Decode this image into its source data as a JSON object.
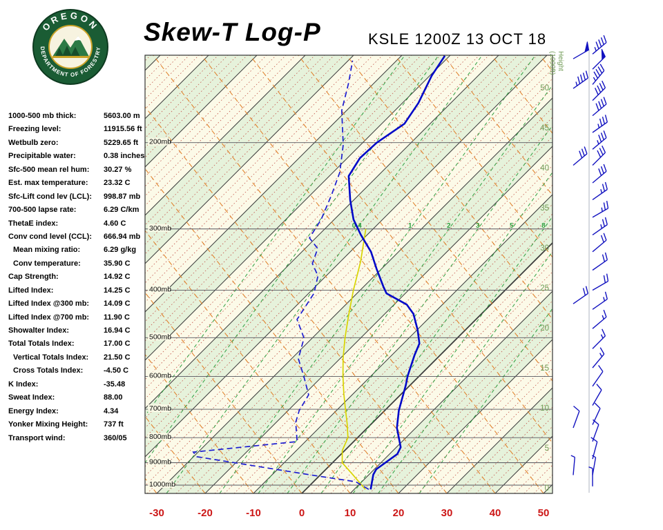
{
  "header": {
    "title": "Skew-T Log-P",
    "station_line": "KSLE 1200Z 13 OCT 18"
  },
  "logo": {
    "text_top": "OREGON",
    "text_bottom": "DEPARTMENT OF FORESTRY"
  },
  "indices": [
    {
      "label": "1000-500 mb thick:",
      "value": "5603.00 m",
      "indent": false
    },
    {
      "label": "Freezing level:",
      "value": "11915.56 ft",
      "indent": false
    },
    {
      "label": "Wetbulb zero:",
      "value": "5229.65 ft",
      "indent": false
    },
    {
      "label": "Precipitable water:",
      "value": "0.38 inches",
      "indent": false
    },
    {
      "label": "Sfc-500 mean rel hum:",
      "value": "30.27 %",
      "indent": false
    },
    {
      "label": "Est. max temperature:",
      "value": "23.32 C",
      "indent": false
    },
    {
      "label": "Sfc-Lift cond lev (LCL):",
      "value": "998.87 mb",
      "indent": false
    },
    {
      "label": "700-500 lapse rate:",
      "value": "6.29 C/km",
      "indent": false
    },
    {
      "label": "ThetaE index:",
      "value": "4.60 C",
      "indent": false
    },
    {
      "label": "Conv cond level (CCL):",
      "value": "666.94 mb",
      "indent": false
    },
    {
      "label": "Mean mixing ratio:",
      "value": "6.29 g/kg",
      "indent": true
    },
    {
      "label": "Conv temperature:",
      "value": "35.90 C",
      "indent": true
    },
    {
      "label": "Cap Strength:",
      "value": "14.92 C",
      "indent": false
    },
    {
      "label": "Lifted Index:",
      "value": "14.25 C",
      "indent": false
    },
    {
      "label": "Lifted Index @300 mb:",
      "value": "14.09 C",
      "indent": false
    },
    {
      "label": "Lifted Index @700 mb:",
      "value": "11.90 C",
      "indent": false
    },
    {
      "label": "Showalter Index:",
      "value": "16.94 C",
      "indent": false
    },
    {
      "label": "Total Totals Index:",
      "value": "17.00 C",
      "indent": false
    },
    {
      "label": "Vertical Totals Index:",
      "value": "21.50 C",
      "indent": true
    },
    {
      "label": "Cross Totals Index:",
      "value": "-4.50 C",
      "indent": true
    },
    {
      "label": "K Index:",
      "value": "-35.48",
      "indent": false
    },
    {
      "label": "Sweat Index:",
      "value": "88.00",
      "indent": false
    },
    {
      "label": "Energy Index:",
      "value": "4.34",
      "indent": false
    },
    {
      "label": "Yonker Mixing Height:",
      "value": "737 ft",
      "indent": false
    },
    {
      "label": "Transport wind:",
      "value": "360/05",
      "indent": false
    }
  ],
  "chart_data": {
    "type": "skewt-logp",
    "title": "Skew-T Log-P",
    "station": "KSLE",
    "valid_time": "1200Z 13 OCT 18",
    "pressure_axis": {
      "levels_mb": [
        200,
        300,
        400,
        500,
        600,
        700,
        800,
        900,
        1000
      ],
      "unit": "mb"
    },
    "temp_axis": {
      "ticks_c": [
        -30,
        -20,
        -10,
        0,
        10,
        20,
        30,
        40,
        50
      ],
      "unit": "C"
    },
    "height_axis": {
      "label_lines": [
        "Height",
        "(1000ft)"
      ],
      "ticks": [
        50,
        45,
        40,
        35,
        30,
        25,
        20,
        15,
        10,
        5,
        0
      ],
      "unit": "1000ft"
    },
    "isotherm_step_major_c": 10,
    "isotherm_step_minor_c": 2,
    "mixing_ratio_lines": [
      {
        "value": "0.1",
        "td_1000": -44,
        "label": false
      },
      {
        "value": "0.2",
        "td_1000": -37,
        "label": false
      },
      {
        "value": "0.4",
        "td_1000": -28,
        "label": true
      },
      {
        "value": "1",
        "td_1000": -17,
        "label": true
      },
      {
        "value": "2",
        "td_1000": -9,
        "label": true
      },
      {
        "value": "3",
        "td_1000": -3,
        "label": true
      },
      {
        "value": "5",
        "td_1000": 4,
        "label": true
      },
      {
        "value": "8",
        "td_1000": 10.6,
        "label": true
      },
      {
        "value": "12",
        "td_1000": 15.8,
        "label": false
      },
      {
        "value": "20",
        "td_1000": 24.3,
        "label": false
      }
    ],
    "temperature_profile_p_t": [
      [
        1020,
        13.4
      ],
      [
        952,
        10.9
      ],
      [
        928,
        10.4
      ],
      [
        864,
        11.6
      ],
      [
        837,
        10.9
      ],
      [
        764,
        6.1
      ],
      [
        704,
        2.9
      ],
      [
        625,
        -0.9
      ],
      [
        599,
        -2.4
      ],
      [
        543,
        -5.3
      ],
      [
        514,
        -6.7
      ],
      [
        482,
        -9.9
      ],
      [
        447,
        -14.1
      ],
      [
        428,
        -17.4
      ],
      [
        406,
        -23.9
      ],
      [
        393,
        -26.0
      ],
      [
        362,
        -31.0
      ],
      [
        334,
        -35.7
      ],
      [
        308,
        -41.4
      ],
      [
        287,
        -46.0
      ],
      [
        262,
        -50.7
      ],
      [
        234,
        -56.0
      ],
      [
        215,
        -57.4
      ],
      [
        200,
        -57.1
      ],
      [
        183,
        -55.3
      ],
      [
        178,
        -55.7
      ],
      [
        166,
        -56.7
      ],
      [
        146,
        -59.6
      ],
      [
        133,
        -61.0
      ]
    ],
    "dewpoint_profile_p_t": [
      [
        1020,
        13.0
      ],
      [
        984,
        8.7
      ],
      [
        958,
        -0.3
      ],
      [
        875,
        -29.3
      ],
      [
        856,
        -31.0
      ],
      [
        815,
        -11.7
      ],
      [
        744,
        -16.0
      ],
      [
        704,
        -17.7
      ],
      [
        654,
        -19.0
      ],
      [
        601,
        -23.7
      ],
      [
        552,
        -28.6
      ],
      [
        501,
        -31.7
      ],
      [
        459,
        -37.0
      ],
      [
        406,
        -38.9
      ],
      [
        374,
        -41.7
      ],
      [
        353,
        -45.4
      ],
      [
        329,
        -47.4
      ],
      [
        313,
        -51.3
      ],
      [
        287,
        -52.7
      ],
      [
        256,
        -55.6
      ],
      [
        230,
        -58.6
      ],
      [
        202,
        -63.6
      ],
      [
        172,
        -71.0
      ],
      [
        151,
        -75.3
      ],
      [
        136,
        -79.1
      ]
    ],
    "parcel_profile_p_t": [
      [
        1020,
        12.3
      ],
      [
        950,
        6.5
      ],
      [
        900,
        2.0
      ],
      [
        850,
        -0.5
      ],
      [
        800,
        -2.0
      ],
      [
        750,
        -5.0
      ],
      [
        700,
        -8.4
      ],
      [
        650,
        -12.0
      ],
      [
        600,
        -15.7
      ],
      [
        550,
        -19.5
      ],
      [
        500,
        -23.3
      ],
      [
        450,
        -27.2
      ],
      [
        400,
        -31.4
      ],
      [
        350,
        -35.8
      ],
      [
        300,
        -41.5
      ]
    ],
    "wind_barbs_main_hkft_dir_spd": [
      [
        54.2,
        50,
        45
      ],
      [
        52.3,
        45,
        50
      ],
      [
        50.4,
        40,
        45
      ],
      [
        48.4,
        45,
        40
      ],
      [
        46.5,
        50,
        40
      ],
      [
        44.4,
        55,
        35
      ],
      [
        42.3,
        50,
        35
      ],
      [
        40.3,
        45,
        30
      ],
      [
        38.1,
        50,
        30
      ],
      [
        36.0,
        55,
        25
      ],
      [
        33.8,
        60,
        25
      ],
      [
        31.6,
        55,
        25
      ],
      [
        29.5,
        50,
        20
      ],
      [
        27.2,
        55,
        20
      ],
      [
        24.7,
        60,
        20
      ],
      [
        22.3,
        55,
        15
      ],
      [
        19.9,
        50,
        15
      ],
      [
        17.4,
        45,
        15
      ],
      [
        15.0,
        40,
        15
      ],
      [
        12.7,
        35,
        10
      ],
      [
        10.3,
        30,
        10
      ],
      [
        7.9,
        25,
        10
      ],
      [
        5.8,
        20,
        10
      ],
      [
        3.6,
        15,
        10
      ],
      [
        1.6,
        10,
        5
      ],
      [
        0.2,
        360,
        5
      ]
    ],
    "wind_barbs_secondary_hkft_dir_spd": [
      [
        53.6,
        60,
        50
      ],
      [
        49.9,
        55,
        45
      ],
      [
        40.3,
        50,
        30
      ],
      [
        23.0,
        55,
        20
      ],
      [
        7.5,
        20,
        10
      ],
      [
        1.6,
        5,
        5
      ]
    ],
    "colors": {
      "band_cream": "#fcfae8",
      "band_green": "#e6f2db",
      "isotherm_major": "#3c3c3c",
      "isotherm_minor": "#c2564c",
      "dry_adiabat": "#e0832e",
      "mixing_green": "#2f9e40",
      "pressure_line": "#55555e",
      "temp_trace": "#0008c8",
      "dew_trace": "#1b1bd0",
      "parcel_trace": "#d8d400",
      "axis_red": "#cc1616",
      "height_green": "#6f9a55",
      "barb_blue": "#1212c0",
      "border": "#333333"
    }
  }
}
